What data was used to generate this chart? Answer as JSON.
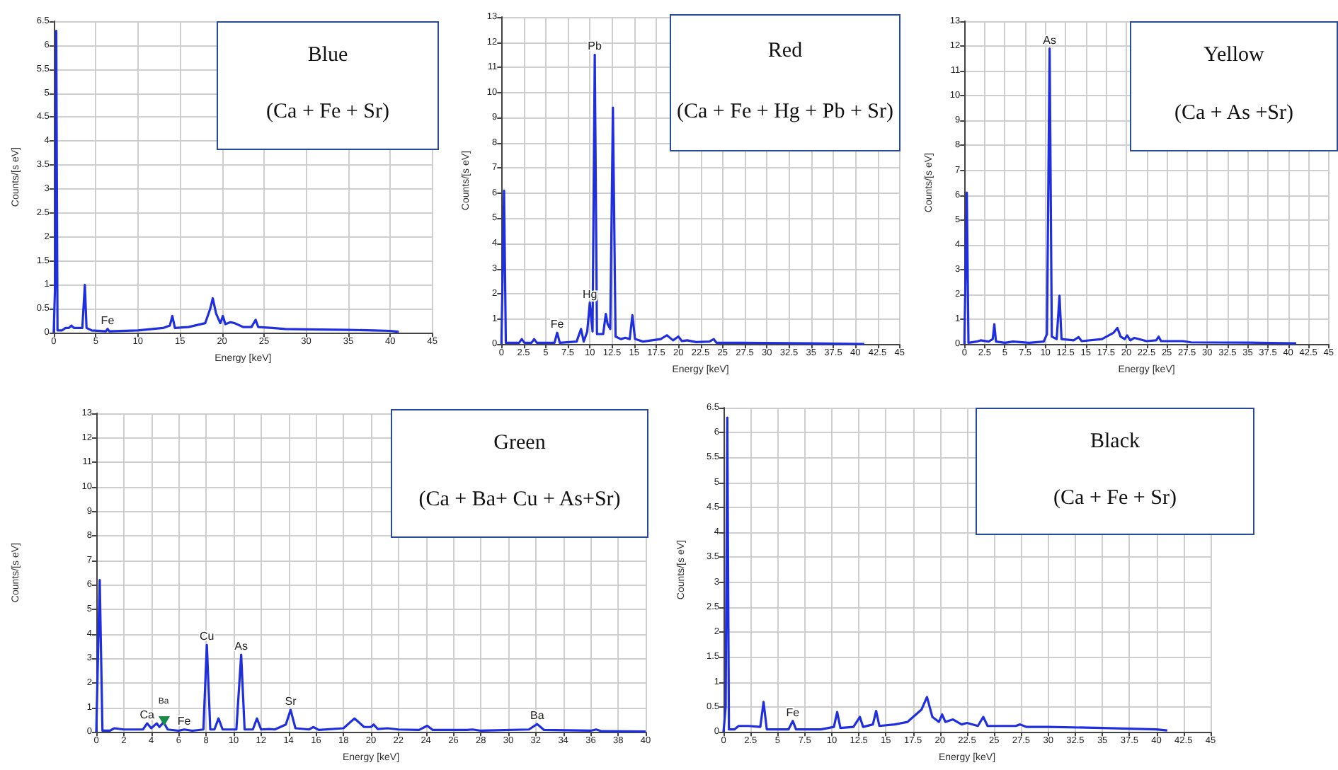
{
  "chart_data": [
    {
      "type": "line",
      "title": "Blue",
      "subtitle": "(Ca + Fe + Sr)",
      "xlabel": "Energy [keV]",
      "ylabel": "Counts/[s eV]",
      "color": "#1f2fe0",
      "grid": true,
      "marker": "none",
      "xlim": [
        0,
        45
      ],
      "xticks": [
        0,
        5,
        10,
        15,
        20,
        25,
        30,
        35,
        40,
        45
      ],
      "ylim": [
        0,
        6.5
      ],
      "yticks": [
        0,
        0.5,
        1,
        1.5,
        2,
        2.5,
        3,
        3.5,
        4,
        4.5,
        5,
        5.5,
        6,
        6.5
      ],
      "x": [
        0,
        0.2,
        0.3,
        0.45,
        1,
        1.4,
        1.8,
        2.1,
        2.4,
        3.4,
        3.7,
        3.9,
        4.5,
        6.2,
        6.4,
        6.6,
        10,
        13,
        13.8,
        14.1,
        14.4,
        16,
        18,
        18.6,
        18.9,
        19.3,
        19.8,
        20.1,
        20.4,
        21,
        21.5,
        22.5,
        23.5,
        24,
        24.3,
        26,
        27.5,
        30,
        35,
        38,
        40,
        41
      ],
      "values": [
        0,
        1.2,
        6.3,
        0.05,
        0.05,
        0.1,
        0.1,
        0.15,
        0.1,
        0.1,
        1.0,
        0.1,
        0.05,
        0.03,
        0.08,
        0.03,
        0.05,
        0.1,
        0.15,
        0.35,
        0.1,
        0.12,
        0.2,
        0.5,
        0.72,
        0.4,
        0.2,
        0.35,
        0.18,
        0.22,
        0.2,
        0.12,
        0.12,
        0.27,
        0.12,
        0.1,
        0.08,
        0.07,
        0.06,
        0.05,
        0.04,
        0.02
      ],
      "annotations": [
        {
          "text": "Fe",
          "x": 6.4,
          "y": 0.08
        }
      ]
    },
    {
      "type": "line",
      "title": "Red",
      "subtitle": "(Ca + Fe + Hg + Pb + Sr)",
      "xlabel": "Energy [keV]",
      "ylabel": "Counts/[s eV]",
      "color": "#1f2fe0",
      "grid": true,
      "marker": "none",
      "xlim": [
        0,
        45
      ],
      "xticks": [
        0,
        2.5,
        5,
        7.5,
        10,
        12.5,
        15,
        17.5,
        20,
        22.5,
        25,
        27.5,
        30,
        32.5,
        35,
        37.5,
        40,
        42.5,
        45
      ],
      "ylim": [
        0,
        13
      ],
      "yticks": [
        0,
        1,
        2,
        3,
        4,
        5,
        6,
        7,
        8,
        9,
        10,
        11,
        12,
        13
      ],
      "x": [
        0,
        0.3,
        0.5,
        2,
        2.3,
        2.6,
        3.4,
        3.7,
        4,
        6,
        6.3,
        6.6,
        8.5,
        9,
        9.3,
        9.7,
        9.99,
        10.3,
        10.55,
        10.8,
        11.5,
        11.8,
        12,
        12.3,
        12.6,
        12.9,
        13.5,
        14,
        14.5,
        14.8,
        15.1,
        16,
        18,
        18.7,
        19.4,
        20,
        20.4,
        21,
        22,
        23.5,
        24,
        24.3,
        27,
        35,
        41
      ],
      "values": [
        0,
        6.1,
        0.05,
        0.05,
        0.2,
        0.05,
        0.05,
        0.2,
        0.05,
        0.05,
        0.45,
        0.05,
        0.1,
        0.6,
        0.1,
        0.5,
        1.65,
        0.5,
        11.5,
        0.4,
        0.4,
        1.2,
        0.8,
        0.6,
        9.4,
        0.3,
        0.2,
        0.25,
        0.2,
        1.15,
        0.2,
        0.1,
        0.2,
        0.35,
        0.15,
        0.3,
        0.12,
        0.15,
        0.08,
        0.1,
        0.2,
        0.05,
        0.05,
        0.03,
        0
      ],
      "annotations": [
        {
          "text": "Fe",
          "x": 6.3,
          "y": 0.45
        },
        {
          "text": "Hg",
          "x": 9.99,
          "y": 1.65
        },
        {
          "text": "Pb",
          "x": 10.55,
          "y": 11.5
        }
      ]
    },
    {
      "type": "line",
      "title": "Yellow",
      "subtitle": "(Ca + As +Sr)",
      "xlabel": "Energy [keV]",
      "ylabel": "Counts/[s eV]",
      "color": "#1f2fe0",
      "grid": true,
      "marker": "none",
      "xlim": [
        0,
        45
      ],
      "xticks": [
        0,
        2.5,
        5,
        7.5,
        10,
        12.5,
        15,
        17.5,
        20,
        22.5,
        25,
        27.5,
        30,
        32.5,
        35,
        37.5,
        40,
        42.5,
        45
      ],
      "ylim": [
        0,
        13
      ],
      "yticks": [
        0,
        1,
        2,
        3,
        4,
        5,
        6,
        7,
        8,
        9,
        10,
        11,
        12,
        13
      ],
      "x": [
        0,
        0.3,
        0.5,
        1.5,
        2,
        3,
        3.5,
        3.7,
        3.9,
        5,
        6,
        8,
        9.8,
        10.2,
        10.53,
        10.8,
        11.4,
        11.75,
        12,
        13.5,
        14.1,
        14.5,
        17,
        18.4,
        18.9,
        19.3,
        19.8,
        20.1,
        20.5,
        21,
        21.6,
        22.5,
        23.7,
        24,
        24.3,
        27,
        28,
        35,
        41
      ],
      "values": [
        0,
        6.1,
        0.05,
        0.1,
        0.15,
        0.1,
        0.2,
        0.8,
        0.1,
        0.05,
        0.1,
        0.05,
        0.1,
        0.4,
        11.9,
        0.3,
        0.2,
        1.95,
        0.2,
        0.15,
        0.28,
        0.12,
        0.2,
        0.45,
        0.65,
        0.3,
        0.2,
        0.35,
        0.15,
        0.25,
        0.2,
        0.12,
        0.15,
        0.3,
        0.12,
        0.12,
        0.07,
        0.06,
        0.03
      ],
      "annotations": [
        {
          "text": "As",
          "x": 10.53,
          "y": 11.9
        }
      ]
    },
    {
      "type": "line",
      "title": "Green",
      "subtitle": "(Ca + Ba+ Cu + As+Sr)",
      "xlabel": "Energy [keV]",
      "ylabel": "Counts/[s eV]",
      "color": "#1f2fe0",
      "grid": true,
      "marker": "none",
      "xlim": [
        0,
        40
      ],
      "xticks": [
        0,
        2,
        4,
        6,
        8,
        10,
        12,
        14,
        16,
        18,
        20,
        22,
        24,
        26,
        28,
        30,
        32,
        34,
        36,
        38,
        40
      ],
      "ylim": [
        0,
        13
      ],
      "yticks": [
        0,
        1,
        2,
        3,
        4,
        5,
        6,
        7,
        8,
        9,
        10,
        11,
        12,
        13
      ],
      "x": [
        0,
        0.25,
        0.45,
        1,
        1.3,
        2,
        3.4,
        3.7,
        4,
        4.4,
        4.6,
        4.9,
        5.2,
        6,
        6.4,
        7,
        7.8,
        8.05,
        8.3,
        8.6,
        8.9,
        9.2,
        10.2,
        10.55,
        10.8,
        11.4,
        11.7,
        12,
        12.6,
        13,
        13.8,
        14.15,
        14.5,
        15.5,
        15.8,
        16.2,
        18,
        18.8,
        19.5,
        20,
        20.2,
        20.5,
        21.2,
        22,
        23.5,
        24.1,
        24.5,
        27,
        27.4,
        28,
        31.5,
        32.1,
        32.6,
        36,
        36.4,
        36.8,
        40
      ],
      "values": [
        0,
        6.2,
        0.05,
        0.05,
        0.15,
        0.1,
        0.1,
        0.35,
        0.15,
        0.35,
        0.2,
        0.4,
        0.1,
        0.05,
        0.1,
        0.05,
        0.1,
        3.55,
        0.1,
        0.1,
        0.55,
        0.1,
        0.1,
        3.15,
        0.1,
        0.1,
        0.55,
        0.1,
        0.12,
        0.1,
        0.3,
        0.9,
        0.15,
        0.1,
        0.2,
        0.08,
        0.15,
        0.55,
        0.2,
        0.2,
        0.3,
        0.12,
        0.15,
        0.1,
        0.08,
        0.25,
        0.08,
        0.08,
        0.1,
        0.05,
        0.1,
        0.32,
        0.08,
        0.05,
        0.1,
        0.03,
        0.02
      ],
      "annotations": [
        {
          "text": "Ca",
          "x": 3.7,
          "y": 0.35
        },
        {
          "text": "Ba",
          "x": 4.9,
          "y": 0.4
        },
        {
          "text": "Fe",
          "x": 6.4,
          "y": 0.1
        },
        {
          "text": "Cu",
          "x": 8.05,
          "y": 3.55
        },
        {
          "text": "As",
          "x": 10.55,
          "y": 3.15
        },
        {
          "text": "Sr",
          "x": 14.15,
          "y": 0.9
        },
        {
          "text": "Ba",
          "x": 32.1,
          "y": 0.32
        }
      ]
    },
    {
      "type": "line",
      "title": "Black",
      "subtitle": "(Ca + Fe + Sr)",
      "xlabel": "Energy [keV]",
      "ylabel": "Counts/[s eV]",
      "color": "#1f2fe0",
      "grid": true,
      "marker": "none",
      "xlim": [
        0,
        45
      ],
      "xticks": [
        0,
        2.5,
        5,
        7.5,
        10,
        12.5,
        15,
        17.5,
        20,
        22.5,
        25,
        27.5,
        30,
        32.5,
        35,
        37.5,
        40,
        42.5,
        45
      ],
      "ylim": [
        0,
        6.5
      ],
      "yticks": [
        0,
        0.5,
        1,
        1.5,
        2,
        2.5,
        3,
        3.5,
        4,
        4.5,
        5,
        5.5,
        6,
        6.5
      ],
      "x": [
        0,
        0.2,
        0.35,
        0.5,
        1,
        1.4,
        2.3,
        3.4,
        3.7,
        4,
        6,
        6.4,
        6.7,
        9,
        10.2,
        10.5,
        10.8,
        12,
        12.6,
        12.9,
        13.8,
        14.1,
        14.4,
        15.8,
        17,
        18.3,
        18.8,
        19.3,
        19.9,
        20.2,
        20.5,
        21.2,
        22,
        22.5,
        23.5,
        24,
        24.4,
        27,
        27.4,
        28,
        30,
        35,
        40,
        41
      ],
      "values": [
        0,
        0.5,
        6.3,
        0.05,
        0.05,
        0.12,
        0.12,
        0.1,
        0.6,
        0.05,
        0.05,
        0.22,
        0.05,
        0.05,
        0.1,
        0.4,
        0.08,
        0.1,
        0.3,
        0.1,
        0.15,
        0.42,
        0.12,
        0.15,
        0.2,
        0.45,
        0.7,
        0.3,
        0.2,
        0.35,
        0.2,
        0.25,
        0.15,
        0.18,
        0.12,
        0.3,
        0.12,
        0.12,
        0.15,
        0.1,
        0.1,
        0.08,
        0.05,
        0.03
      ],
      "annotations": [
        {
          "text": "Fe",
          "x": 6.4,
          "y": 0.22
        }
      ]
    }
  ]
}
